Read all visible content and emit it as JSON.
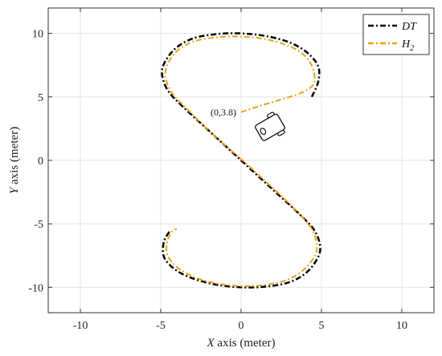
{
  "chart_data": {
    "type": "line",
    "xlabel": {
      "var": "X",
      "rest": " axis (meter)"
    },
    "ylabel": {
      "var": "Y",
      "rest": " axis (meter)"
    },
    "xlim": [
      -12,
      12
    ],
    "ylim": [
      -12,
      12
    ],
    "xticks": [
      -10,
      -5,
      0,
      5,
      10
    ],
    "yticks": [
      -10,
      -5,
      0,
      5,
      10
    ],
    "xtick_labels": [
      "-10",
      "-5",
      "0",
      "5",
      "10"
    ],
    "ytick_labels": [
      "-10",
      "-5",
      "0",
      "5",
      "10"
    ],
    "grid": true,
    "legend_position": "top-right",
    "series": [
      {
        "name": "DT",
        "legend_label": "DT",
        "color": "#000000",
        "style": "dash-dot",
        "points": [
          [
            4.4,
            5.0
          ],
          [
            4.8,
            6.2
          ],
          [
            4.8,
            7.4
          ],
          [
            4.1,
            8.5
          ],
          [
            3.0,
            9.3
          ],
          [
            1.5,
            9.8
          ],
          [
            0.0,
            10.0
          ],
          [
            -1.5,
            9.95
          ],
          [
            -3.0,
            9.6
          ],
          [
            -4.1,
            8.8
          ],
          [
            -4.8,
            7.6
          ],
          [
            -4.9,
            6.6
          ],
          [
            -4.5,
            5.4
          ],
          [
            -3.6,
            4.2
          ],
          [
            -2.4,
            2.8
          ],
          [
            -1.2,
            1.4
          ],
          [
            0.0,
            0.0
          ],
          [
            1.2,
            -1.4
          ],
          [
            2.4,
            -2.8
          ],
          [
            3.6,
            -4.2
          ],
          [
            4.5,
            -5.4
          ],
          [
            4.9,
            -6.6
          ],
          [
            4.8,
            -7.6
          ],
          [
            4.1,
            -8.8
          ],
          [
            3.0,
            -9.6
          ],
          [
            1.5,
            -9.95
          ],
          [
            0.0,
            -10.0
          ],
          [
            -1.5,
            -9.8
          ],
          [
            -3.0,
            -9.3
          ],
          [
            -4.1,
            -8.6
          ],
          [
            -4.8,
            -7.6
          ],
          [
            -4.8,
            -6.4
          ],
          [
            -4.4,
            -5.5
          ]
        ]
      },
      {
        "name": "H2",
        "legend_label": "H",
        "legend_sub": "2",
        "color": "#E8A317",
        "style": "dash-dot",
        "points": [
          [
            0.0,
            3.8
          ],
          [
            1.2,
            4.3
          ],
          [
            2.5,
            4.8
          ],
          [
            3.7,
            5.3
          ],
          [
            4.5,
            6.0
          ],
          [
            4.5,
            7.1
          ],
          [
            4.0,
            8.2
          ],
          [
            3.0,
            9.0
          ],
          [
            1.5,
            9.55
          ],
          [
            0.0,
            9.75
          ],
          [
            -1.5,
            9.7
          ],
          [
            -3.0,
            9.35
          ],
          [
            -4.0,
            8.6
          ],
          [
            -4.6,
            7.5
          ],
          [
            -4.7,
            6.5
          ],
          [
            -4.3,
            5.3
          ],
          [
            -3.4,
            4.1
          ],
          [
            -2.3,
            2.7
          ],
          [
            -1.1,
            1.3
          ],
          [
            0.1,
            0.0
          ],
          [
            1.3,
            -1.4
          ],
          [
            2.5,
            -2.8
          ],
          [
            3.6,
            -4.2
          ],
          [
            4.4,
            -5.4
          ],
          [
            4.7,
            -6.6
          ],
          [
            4.6,
            -7.5
          ],
          [
            3.9,
            -8.6
          ],
          [
            2.9,
            -9.4
          ],
          [
            1.5,
            -9.8
          ],
          [
            0.0,
            -9.9
          ],
          [
            -1.5,
            -9.7
          ],
          [
            -2.9,
            -9.2
          ],
          [
            -4.0,
            -8.4
          ],
          [
            -4.6,
            -7.4
          ],
          [
            -4.6,
            -6.4
          ],
          [
            -4.3,
            -5.6
          ],
          [
            -4.0,
            -5.4
          ]
        ]
      }
    ],
    "annotation": {
      "text": "(0,3.8)",
      "x": 0,
      "y": 3.8
    },
    "robot_icon": {
      "x": 1.8,
      "y": 2.6,
      "angle_deg": -30
    }
  }
}
